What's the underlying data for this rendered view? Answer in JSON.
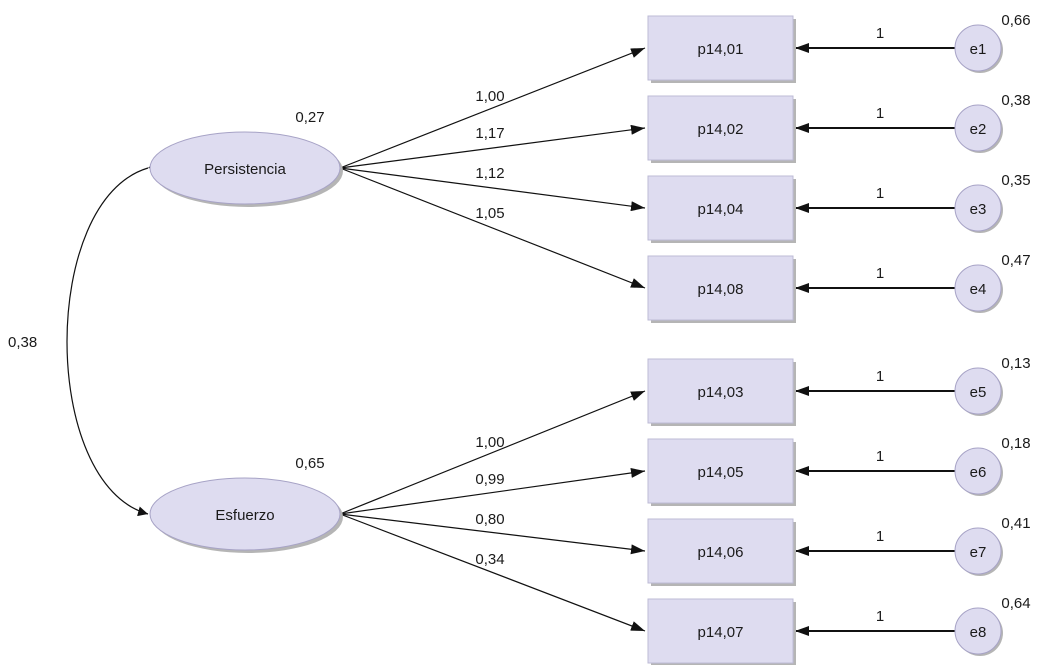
{
  "colors": {
    "node_fill": "#dedcf0",
    "node_stroke": "#a7a3c6",
    "shadow": "#b5b5b5",
    "line": "#111111"
  },
  "covariance": "0,38",
  "factors": [
    {
      "name": "Persistencia",
      "variance": "0,27",
      "indicators": [
        {
          "name": "p14,01",
          "loading": "1,00",
          "error": "e1",
          "error_fixed": "1",
          "error_variance": "0,66"
        },
        {
          "name": "p14,02",
          "loading": "1,17",
          "error": "e2",
          "error_fixed": "1",
          "error_variance": "0,38"
        },
        {
          "name": "p14,04",
          "loading": "1,12",
          "error": "e3",
          "error_fixed": "1",
          "error_variance": "0,35"
        },
        {
          "name": "p14,08",
          "loading": "1,05",
          "error": "e4",
          "error_fixed": "1",
          "error_variance": "0,47"
        }
      ]
    },
    {
      "name": "Esfuerzo",
      "variance": "0,65",
      "indicators": [
        {
          "name": "p14,03",
          "loading": "1,00",
          "error": "e5",
          "error_fixed": "1",
          "error_variance": "0,13"
        },
        {
          "name": "p14,05",
          "loading": "0,99",
          "error": "e6",
          "error_fixed": "1",
          "error_variance": "0,18"
        },
        {
          "name": "p14,06",
          "loading": "0,80",
          "error": "e7",
          "error_fixed": "1",
          "error_variance": "0,41"
        },
        {
          "name": "p14,07",
          "loading": "0,34",
          "error": "e8",
          "error_fixed": "1",
          "error_variance": "0,64"
        }
      ]
    }
  ]
}
